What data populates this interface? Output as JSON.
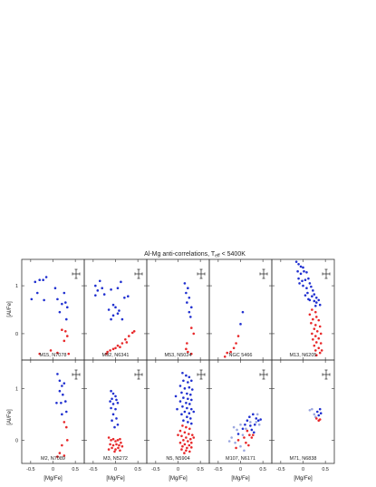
{
  "chart_data": {
    "type": "scatter",
    "title_main": "Al-Mg anti-correlations, T",
    "title_sub": "eff",
    "title_tail": " < 5400K",
    "xlabel": "[Mg/Fe]",
    "ylabel": "[Al/Fe]",
    "xlim": [
      -0.7,
      0.7
    ],
    "ylim_top": [
      -0.55,
      1.55
    ],
    "ylim_bottom": [
      -0.45,
      1.55
    ],
    "xticks": [
      -0.5,
      0,
      0.5
    ],
    "xtick_labels": [
      "-0.5",
      "0",
      "0.5"
    ],
    "yticks": [
      0,
      1
    ],
    "ytick_labels": [
      "0",
      "1"
    ],
    "colors": {
      "first_gen": "#e8282a",
      "second_gen": "#2030d0",
      "light": "#9aa6e0",
      "light_red": "#f0a0a4"
    },
    "panels": [
      {
        "label": "M15, N7078",
        "row": 0,
        "col": 0,
        "blue": [
          [
            -0.4,
            1.08
          ],
          [
            -0.3,
            1.12
          ],
          [
            -0.22,
            1.12
          ],
          [
            -0.15,
            1.18
          ],
          [
            -0.48,
            0.72
          ],
          [
            -0.35,
            0.85
          ],
          [
            -0.2,
            0.7
          ],
          [
            0.05,
            0.95
          ],
          [
            0.1,
            0.72
          ],
          [
            0.2,
            0.62
          ],
          [
            0.28,
            0.65
          ],
          [
            0.32,
            0.55
          ],
          [
            0.15,
            0.45
          ],
          [
            0.3,
            0.3
          ],
          [
            0.25,
            0.85
          ]
        ],
        "red": [
          [
            0.2,
            0.08
          ],
          [
            0.28,
            0.05
          ],
          [
            0.32,
            -0.05
          ],
          [
            0.25,
            -0.15
          ],
          [
            0.35,
            -0.42
          ],
          [
            0.1,
            -0.4
          ],
          [
            -0.3,
            -0.42
          ],
          [
            -0.05,
            -0.35
          ],
          [
            0.18,
            -0.55
          ]
        ]
      },
      {
        "label": "M92, N6341",
        "row": 0,
        "col": 1,
        "blue": [
          [
            -0.45,
            1.0
          ],
          [
            -0.4,
            0.9
          ],
          [
            -0.35,
            1.1
          ],
          [
            -0.3,
            0.95
          ],
          [
            -0.45,
            0.8
          ],
          [
            -0.25,
            0.82
          ],
          [
            -0.1,
            0.92
          ],
          [
            0.05,
            0.95
          ],
          [
            0.12,
            1.08
          ],
          [
            0.2,
            0.75
          ],
          [
            -0.05,
            0.6
          ],
          [
            -0.15,
            0.5
          ],
          [
            0.0,
            0.55
          ],
          [
            -0.05,
            0.38
          ],
          [
            0.08,
            0.48
          ],
          [
            -0.1,
            0.3
          ],
          [
            0.15,
            0.3
          ],
          [
            0.05,
            0.42
          ],
          [
            0.28,
            0.78
          ]
        ],
        "red": [
          [
            0.38,
            0.02
          ],
          [
            0.3,
            -0.05
          ],
          [
            0.22,
            -0.12
          ],
          [
            0.15,
            -0.2
          ],
          [
            0.05,
            -0.25
          ],
          [
            0.0,
            -0.3
          ],
          [
            -0.05,
            -0.32
          ],
          [
            -0.12,
            -0.35
          ],
          [
            -0.18,
            -0.38
          ],
          [
            0.1,
            -0.28
          ],
          [
            0.25,
            -0.18
          ],
          [
            0.42,
            0.05
          ],
          [
            -0.2,
            -0.42
          ]
        ]
      },
      {
        "label": "M53, N5024",
        "row": 0,
        "col": 2,
        "blue": [
          [
            0.15,
            1.05
          ],
          [
            0.22,
            0.95
          ],
          [
            0.18,
            0.85
          ],
          [
            0.25,
            0.75
          ],
          [
            0.2,
            0.65
          ],
          [
            0.3,
            0.55
          ],
          [
            0.25,
            0.45
          ],
          [
            0.28,
            0.35
          ]
        ],
        "red": [
          [
            0.3,
            0.12
          ],
          [
            0.35,
            0.0
          ],
          [
            0.2,
            -0.2
          ],
          [
            0.18,
            -0.32
          ],
          [
            0.22,
            -0.38
          ],
          [
            0.3,
            -0.42
          ]
        ]
      },
      {
        "label": "NGC 5466",
        "row": 0,
        "col": 3,
        "blue": [
          [
            0.05,
            0.45
          ],
          [
            0.0,
            0.2
          ]
        ],
        "red": [
          [
            -0.05,
            -0.05
          ],
          [
            -0.1,
            -0.2
          ],
          [
            -0.15,
            -0.3
          ],
          [
            -0.22,
            -0.38
          ],
          [
            -0.3,
            -0.4
          ],
          [
            -0.35,
            -0.48
          ]
        ]
      },
      {
        "label": "M13, N6205",
        "row": 0,
        "col": 4,
        "blue": [
          [
            -0.15,
            1.5
          ],
          [
            -0.1,
            1.45
          ],
          [
            -0.05,
            1.4
          ],
          [
            0.0,
            1.38
          ],
          [
            -0.12,
            1.3
          ],
          [
            -0.05,
            1.25
          ],
          [
            0.02,
            1.3
          ],
          [
            0.08,
            1.28
          ],
          [
            -0.1,
            1.15
          ],
          [
            -0.02,
            1.1
          ],
          [
            0.05,
            1.12
          ],
          [
            0.12,
            1.15
          ],
          [
            0.15,
            1.05
          ],
          [
            0.0,
            1.0
          ],
          [
            0.08,
            0.95
          ],
          [
            0.18,
            0.98
          ],
          [
            0.22,
            0.9
          ],
          [
            0.1,
            0.85
          ],
          [
            0.25,
            0.82
          ],
          [
            0.2,
            0.78
          ],
          [
            0.3,
            0.75
          ],
          [
            0.15,
            0.7
          ],
          [
            0.25,
            0.68
          ],
          [
            0.35,
            0.7
          ],
          [
            0.3,
            0.65
          ],
          [
            0.38,
            0.6
          ],
          [
            -0.08,
            1.05
          ],
          [
            0.05,
            0.8
          ],
          [
            0.12,
            0.72
          ],
          [
            0.28,
            0.58
          ]
        ],
        "red": [
          [
            0.2,
            0.5
          ],
          [
            0.28,
            0.45
          ],
          [
            0.15,
            0.4
          ],
          [
            0.3,
            0.35
          ],
          [
            0.22,
            0.3
          ],
          [
            0.35,
            0.28
          ],
          [
            0.18,
            0.22
          ],
          [
            0.28,
            0.18
          ],
          [
            0.38,
            0.15
          ],
          [
            0.25,
            0.1
          ],
          [
            0.32,
            0.05
          ],
          [
            0.2,
            0.0
          ],
          [
            0.4,
            0.0
          ],
          [
            0.28,
            -0.05
          ],
          [
            0.35,
            -0.1
          ],
          [
            0.22,
            -0.12
          ],
          [
            0.3,
            -0.18
          ],
          [
            0.4,
            -0.2
          ],
          [
            0.25,
            -0.25
          ],
          [
            0.35,
            -0.3
          ],
          [
            0.28,
            -0.35
          ],
          [
            0.38,
            -0.4
          ],
          [
            0.3,
            -0.45
          ],
          [
            0.42,
            -0.35
          ]
        ]
      },
      {
        "label": "M2, N7089",
        "row": 1,
        "col": 0,
        "blue": [
          [
            0.1,
            1.28
          ],
          [
            0.15,
            1.15
          ],
          [
            0.2,
            1.05
          ],
          [
            0.25,
            1.1
          ],
          [
            0.15,
            0.95
          ],
          [
            0.22,
            0.88
          ],
          [
            0.08,
            0.72
          ],
          [
            0.18,
            0.72
          ],
          [
            0.28,
            0.75
          ],
          [
            0.3,
            0.55
          ],
          [
            0.2,
            0.5
          ]
        ],
        "red": [
          [
            0.25,
            0.35
          ],
          [
            0.3,
            0.25
          ],
          [
            0.32,
            0.0
          ],
          [
            0.2,
            -0.1
          ],
          [
            0.15,
            -0.25
          ],
          [
            0.25,
            -0.3
          ],
          [
            0.1,
            -0.32
          ]
        ]
      },
      {
        "label": "M3, N5272",
        "row": 1,
        "col": 1,
        "blue": [
          [
            -0.1,
            0.95
          ],
          [
            -0.05,
            0.9
          ],
          [
            0.0,
            0.85
          ],
          [
            -0.08,
            0.8
          ],
          [
            0.02,
            0.78
          ],
          [
            -0.12,
            0.75
          ],
          [
            -0.05,
            0.7
          ],
          [
            0.05,
            0.72
          ],
          [
            -0.1,
            0.62
          ],
          [
            0.0,
            0.6
          ],
          [
            -0.05,
            0.5
          ],
          [
            0.02,
            0.42
          ],
          [
            -0.08,
            0.38
          ],
          [
            0.05,
            0.3
          ],
          [
            -0.02,
            0.25
          ]
        ],
        "red": [
          [
            -0.15,
            0.05
          ],
          [
            -0.1,
            0.0
          ],
          [
            -0.05,
            0.02
          ],
          [
            0.0,
            -0.02
          ],
          [
            0.05,
            0.0
          ],
          [
            0.1,
            0.02
          ],
          [
            -0.12,
            -0.08
          ],
          [
            -0.05,
            -0.1
          ],
          [
            0.02,
            -0.08
          ],
          [
            0.08,
            -0.1
          ],
          [
            0.12,
            -0.05
          ],
          [
            -0.08,
            -0.15
          ],
          [
            0.0,
            -0.18
          ],
          [
            0.06,
            -0.15
          ],
          [
            -0.02,
            -0.22
          ],
          [
            0.1,
            -0.2
          ],
          [
            0.15,
            -0.12
          ],
          [
            -0.15,
            -0.18
          ]
        ]
      },
      {
        "label": "N5, N5904",
        "row": 1,
        "col": 2,
        "blue": [
          [
            0.1,
            1.3
          ],
          [
            0.18,
            1.25
          ],
          [
            0.25,
            1.22
          ],
          [
            0.12,
            1.15
          ],
          [
            0.22,
            1.12
          ],
          [
            0.3,
            1.15
          ],
          [
            0.05,
            1.05
          ],
          [
            0.15,
            1.0
          ],
          [
            0.25,
            1.02
          ],
          [
            0.32,
            0.98
          ],
          [
            0.08,
            0.92
          ],
          [
            0.2,
            0.9
          ],
          [
            0.28,
            0.88
          ],
          [
            0.12,
            0.82
          ],
          [
            0.22,
            0.8
          ],
          [
            0.3,
            0.78
          ],
          [
            0.05,
            0.75
          ],
          [
            0.18,
            0.72
          ],
          [
            0.26,
            0.7
          ],
          [
            0.1,
            0.65
          ],
          [
            0.2,
            0.62
          ],
          [
            0.3,
            0.6
          ],
          [
            0.15,
            0.55
          ],
          [
            0.25,
            0.52
          ],
          [
            0.08,
            0.5
          ],
          [
            0.2,
            0.45
          ],
          [
            0.28,
            0.42
          ],
          [
            0.12,
            0.38
          ],
          [
            0.22,
            0.35
          ],
          [
            0.3,
            0.32
          ],
          [
            -0.05,
            0.85
          ],
          [
            -0.02,
            0.6
          ],
          [
            0.35,
            0.55
          ]
        ],
        "red": [
          [
            0.1,
            0.28
          ],
          [
            0.18,
            0.25
          ],
          [
            0.26,
            0.22
          ],
          [
            0.05,
            0.18
          ],
          [
            0.15,
            0.15
          ],
          [
            0.24,
            0.12
          ],
          [
            0.32,
            0.1
          ],
          [
            0.08,
            0.08
          ],
          [
            0.18,
            0.05
          ],
          [
            0.28,
            0.02
          ],
          [
            0.12,
            0.0
          ],
          [
            0.22,
            -0.02
          ],
          [
            0.3,
            -0.05
          ],
          [
            0.05,
            -0.05
          ],
          [
            0.15,
            -0.08
          ],
          [
            0.25,
            -0.1
          ],
          [
            0.1,
            -0.12
          ],
          [
            0.2,
            -0.15
          ],
          [
            0.3,
            -0.14
          ],
          [
            0.35,
            0.05
          ],
          [
            0.0,
            0.1
          ],
          [
            0.08,
            -0.18
          ],
          [
            0.18,
            -0.2
          ],
          [
            0.26,
            -0.22
          ],
          [
            0.14,
            -0.25
          ]
        ]
      },
      {
        "label": "M107, N6171",
        "row": 1,
        "col": 3,
        "blue": [
          [
            0.2,
            0.45
          ],
          [
            0.28,
            0.5
          ],
          [
            0.35,
            0.42
          ],
          [
            0.15,
            0.38
          ],
          [
            0.32,
            0.3
          ],
          [
            0.22,
            0.28
          ],
          [
            0.4,
            0.38
          ],
          [
            0.1,
            0.3
          ],
          [
            0.05,
            0.22
          ],
          [
            0.25,
            0.2
          ],
          [
            -0.05,
            0.12
          ],
          [
            0.3,
            0.15
          ],
          [
            0.45,
            0.4
          ]
        ],
        "red": [
          [
            0.15,
            0.18
          ],
          [
            0.2,
            0.1
          ],
          [
            0.08,
            0.05
          ],
          [
            0.25,
            0.05
          ],
          [
            -0.05,
            0.0
          ],
          [
            0.12,
            -0.05
          ],
          [
            0.18,
            -0.1
          ],
          [
            -0.1,
            -0.15
          ],
          [
            0.28,
            0.1
          ]
        ],
        "light": [
          [
            -0.15,
            0.25
          ],
          [
            -0.08,
            0.2
          ],
          [
            0.0,
            0.3
          ],
          [
            0.05,
            0.1
          ],
          [
            -0.2,
            0.05
          ],
          [
            0.12,
            0.22
          ],
          [
            0.35,
            0.35
          ],
          [
            0.42,
            0.3
          ],
          [
            -0.12,
            -0.05
          ],
          [
            0.0,
            -0.12
          ],
          [
            0.08,
            -0.2
          ],
          [
            0.22,
            0.35
          ],
          [
            0.38,
            0.5
          ],
          [
            -0.25,
            -0.02
          ]
        ]
      },
      {
        "label": "M71, N6838",
        "row": 1,
        "col": 4,
        "blue": [
          [
            0.32,
            0.55
          ],
          [
            0.38,
            0.6
          ],
          [
            0.35,
            0.48
          ],
          [
            0.4,
            0.52
          ]
        ],
        "red": [
          [
            0.3,
            0.42
          ],
          [
            0.35,
            0.38
          ],
          [
            0.38,
            0.4
          ]
        ],
        "light": [
          [
            0.2,
            0.6
          ],
          [
            0.25,
            0.5
          ],
          [
            0.15,
            0.58
          ],
          [
            0.28,
            0.45
          ]
        ]
      }
    ]
  }
}
